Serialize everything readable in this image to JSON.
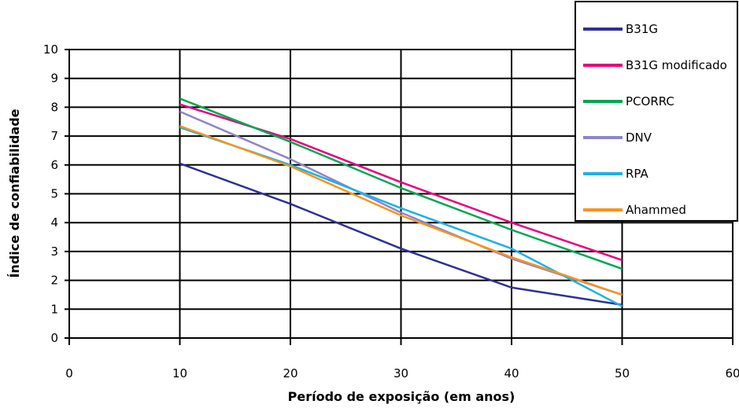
{
  "chart_data": {
    "type": "line",
    "title": "",
    "xlabel": "Período de exposição (em anos)",
    "ylabel": "Índice de confiabilidade",
    "xlim": [
      0,
      60
    ],
    "ylim": [
      0,
      10
    ],
    "xticks": [
      "0",
      "10",
      "20",
      "30",
      "40",
      "50",
      "60"
    ],
    "yticks": [
      "0",
      "1",
      "2",
      "3",
      "4",
      "5",
      "6",
      "7",
      "8",
      "9",
      "10"
    ],
    "grid": true,
    "legend_position": "top-right",
    "x": [
      10,
      20,
      30,
      40,
      50
    ],
    "series": [
      {
        "name": "B31G",
        "color": "#2e3192",
        "values": [
          6.05,
          4.65,
          3.1,
          1.75,
          1.15
        ]
      },
      {
        "name": "B31G modificado",
        "color": "#e6007e",
        "values": [
          8.1,
          6.9,
          5.4,
          4.0,
          2.7
        ]
      },
      {
        "name": "PCORRC",
        "color": "#00a651",
        "values": [
          8.3,
          6.8,
          5.2,
          3.75,
          2.4
        ]
      },
      {
        "name": "DNV",
        "color": "#8c86c6",
        "values": [
          7.85,
          6.2,
          4.35,
          2.75,
          1.5
        ]
      },
      {
        "name": "RPA",
        "color": "#1fb0e6",
        "values": [
          7.3,
          6.0,
          4.5,
          3.1,
          1.1
        ]
      },
      {
        "name": "Ahammed",
        "color": "#f7941d",
        "values": [
          7.35,
          5.95,
          4.25,
          2.8,
          1.5
        ]
      }
    ]
  }
}
